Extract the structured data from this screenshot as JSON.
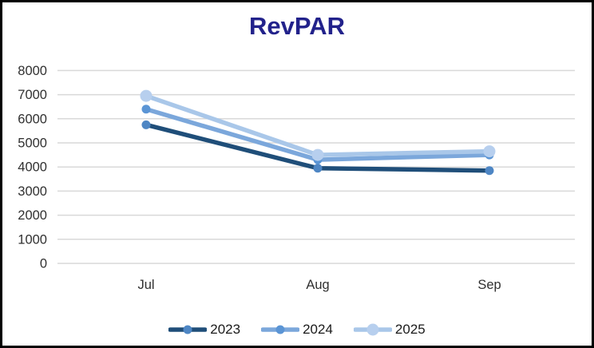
{
  "window": {
    "background": "#ffffff",
    "border_color": "#000000"
  },
  "chart_data": {
    "type": "line",
    "title": "RevPAR",
    "title_color": "#22228B",
    "categories": [
      "Jul",
      "Aug",
      "Sep"
    ],
    "series": [
      {
        "name": "2023",
        "values": [
          5750,
          3950,
          3850
        ],
        "line_color": "#1F4E79",
        "marker_color": "#4E86C4",
        "marker_radius": 5.5
      },
      {
        "name": "2024",
        "values": [
          6400,
          4300,
          4500
        ],
        "line_color": "#7BA7DB",
        "marker_color": "#5B95D5",
        "marker_radius": 5.5
      },
      {
        "name": "2025",
        "values": [
          6950,
          4500,
          4650
        ],
        "line_color": "#A9C7E9",
        "marker_color": "#B7CFEE",
        "marker_radius": 7.5
      }
    ],
    "xlabel": "",
    "ylabel": "",
    "ylim": [
      0,
      8000
    ],
    "ytick_step": 1000,
    "ytick_labels": [
      "0",
      "1000",
      "2000",
      "3000",
      "4000",
      "5000",
      "6000",
      "7000",
      "8000"
    ],
    "grid": true,
    "gridline_color": "#D9D9D9",
    "axis_label_color": "#303030",
    "legend_position": "bottom",
    "line_width": 5.5
  }
}
